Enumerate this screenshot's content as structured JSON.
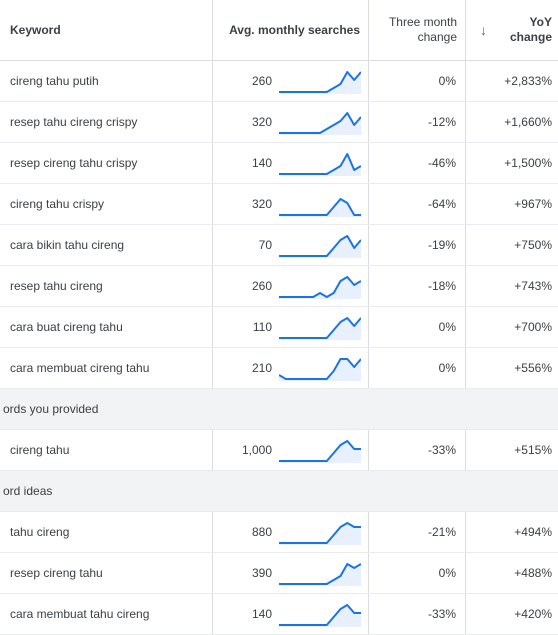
{
  "header": {
    "keyword": "Keyword",
    "avg": "Avg. monthly searches",
    "three_line1": "Three month",
    "three_line2": "change",
    "yoy_line1": "YoY",
    "yoy_line2": "change",
    "sort_icon": "arrow-down-icon"
  },
  "rows_top": [
    {
      "keyword": "cireng tahu putih",
      "avg": "260",
      "three": "0%",
      "yoy": "+2,833%",
      "trend": [
        1,
        1,
        1,
        1,
        1,
        1,
        1,
        1,
        2,
        3,
        6,
        4,
        6
      ]
    },
    {
      "keyword": "resep tahu cireng crispy",
      "avg": "320",
      "three": "-12%",
      "yoy": "+1,660%",
      "trend": [
        1,
        1,
        1,
        1,
        1,
        1,
        1,
        2,
        3,
        4,
        6,
        3,
        5
      ]
    },
    {
      "keyword": "resep cireng tahu crispy",
      "avg": "140",
      "three": "-46%",
      "yoy": "+1,500%",
      "trend": [
        1,
        1,
        1,
        1,
        1,
        1,
        1,
        1,
        2,
        3,
        6,
        2,
        3
      ]
    },
    {
      "keyword": "cireng tahu crispy",
      "avg": "320",
      "three": "-64%",
      "yoy": "+967%",
      "trend": [
        1,
        1,
        1,
        1,
        1,
        1,
        1,
        1,
        3,
        5,
        4,
        1,
        1
      ]
    },
    {
      "keyword": "cara bikin tahu cireng",
      "avg": "70",
      "three": "-19%",
      "yoy": "+750%",
      "trend": [
        1,
        1,
        1,
        1,
        1,
        1,
        1,
        1,
        3,
        5,
        6,
        3,
        5
      ]
    },
    {
      "keyword": "resep tahu cireng",
      "avg": "260",
      "three": "-18%",
      "yoy": "+743%",
      "trend": [
        1,
        1,
        1,
        1,
        1,
        1,
        2,
        1,
        2,
        5,
        6,
        4,
        5
      ]
    },
    {
      "keyword": "cara buat cireng tahu",
      "avg": "110",
      "three": "0%",
      "yoy": "+700%",
      "trend": [
        1,
        1,
        1,
        1,
        1,
        1,
        1,
        1,
        3,
        5,
        6,
        4,
        6
      ]
    },
    {
      "keyword": "cara membuat cireng tahu",
      "avg": "210",
      "three": "0%",
      "yoy": "+556%",
      "trend": [
        2,
        1,
        1,
        1,
        1,
        1,
        1,
        1,
        3,
        6,
        6,
        4,
        6
      ]
    }
  ],
  "section1": "ords you provided",
  "rows_provided": [
    {
      "keyword": "cireng tahu",
      "avg": "1,000",
      "three": "-33%",
      "yoy": "+515%",
      "trend": [
        1,
        1,
        1,
        1,
        1,
        1,
        1,
        1,
        3,
        5,
        6,
        4,
        4
      ]
    }
  ],
  "section2": "ord ideas",
  "rows_ideas": [
    {
      "keyword": "tahu cireng",
      "avg": "880",
      "three": "-21%",
      "yoy": "+494%",
      "trend": [
        1,
        1,
        1,
        1,
        1,
        1,
        1,
        1,
        3,
        5,
        6,
        5,
        5
      ]
    },
    {
      "keyword": "resep cireng tahu",
      "avg": "390",
      "three": "0%",
      "yoy": "+488%",
      "trend": [
        1,
        1,
        1,
        1,
        1,
        1,
        1,
        1,
        2,
        3,
        6,
        5,
        6
      ]
    },
    {
      "keyword": "cara membuat tahu cireng",
      "avg": "140",
      "three": "-33%",
      "yoy": "+420%",
      "trend": [
        1,
        1,
        1,
        1,
        1,
        1,
        1,
        1,
        3,
        5,
        6,
        4,
        4
      ]
    }
  ],
  "colors": {
    "spark_line": "#1a73e8",
    "spark_fill": "#e8f0fe"
  }
}
